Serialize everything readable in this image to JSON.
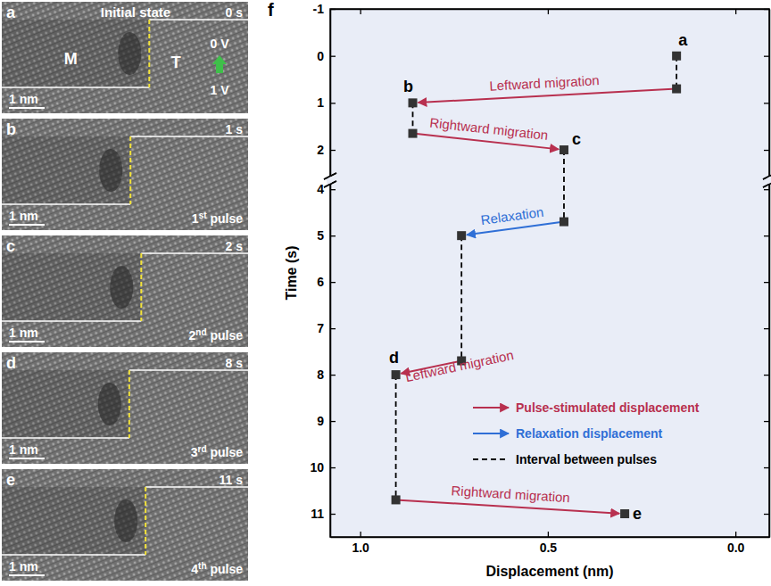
{
  "chart_data": {
    "type": "scatter",
    "panel": "f",
    "x_label": "Displacement (nm)",
    "y_label": "Time (s)",
    "xlim": [
      1.08,
      -0.09
    ],
    "xticks": [
      {
        "value": 1,
        "label": "1.0"
      },
      0.5,
      {
        "value": 0,
        "label": "0.0"
      }
    ],
    "ylim": [
      -1,
      11.5
    ],
    "y_break": [
      2.55,
      3.9
    ],
    "yticks": [
      -1,
      0,
      1,
      2,
      4,
      5,
      6,
      7,
      8,
      9,
      10,
      11
    ],
    "legend": "lower right",
    "points": {
      "x": [
        0.157,
        0.157,
        0.86,
        0.86,
        0.457,
        0.457,
        0.73,
        0.73,
        0.905,
        0.905,
        0.295
      ],
      "y": [
        0,
        0.7,
        1.0,
        1.65,
        2.0,
        4.7,
        5.0,
        7.7,
        8.0,
        10.7,
        11.0
      ],
      "labels": [
        "a",
        null,
        "b",
        null,
        "c",
        null,
        null,
        null,
        "d",
        null,
        "e"
      ],
      "color": "#333333",
      "marker": "square"
    },
    "series": [
      {
        "name": "Pulse-stimulated displacement",
        "color": "#b8304f",
        "marker": "arrow",
        "line_style": "solid",
        "segments": [
          {
            "x": [
              0.157,
              0.86
            ],
            "y": [
              0.7,
              1.0
            ],
            "label": "Leftward migration"
          },
          {
            "x": [
              0.86,
              0.457
            ],
            "y": [
              1.65,
              2.0
            ],
            "label": "Rightward migration"
          },
          {
            "x": [
              0.73,
              0.905
            ],
            "y": [
              7.7,
              8.0
            ],
            "label": "Leftward migration"
          },
          {
            "x": [
              0.905,
              0.295
            ],
            "y": [
              10.7,
              11.0
            ],
            "label": "Rightward migration"
          }
        ]
      },
      {
        "name": "Relaxation displacement",
        "color": "#2f6fd6",
        "marker": "arrow",
        "line_style": "solid",
        "segments": [
          {
            "x": [
              0.457,
              0.73
            ],
            "y": [
              4.7,
              5.0
            ],
            "label": "Relaxation"
          }
        ]
      },
      {
        "name": "Interval between pulses",
        "color": "#000000",
        "marker": "none",
        "line_style": "dashed",
        "segments": [
          {
            "x": [
              0.157,
              0.157
            ],
            "y": [
              0,
              0.7
            ]
          },
          {
            "x": [
              0.86,
              0.86
            ],
            "y": [
              1.0,
              1.65
            ]
          },
          {
            "x": [
              0.457,
              0.457
            ],
            "y": [
              2.0,
              4.7
            ]
          },
          {
            "x": [
              0.73,
              0.73
            ],
            "y": [
              5.0,
              7.7
            ]
          },
          {
            "x": [
              0.905,
              0.905
            ],
            "y": [
              8.0,
              10.7
            ]
          }
        ]
      }
    ]
  },
  "panels": [
    {
      "letter": "a",
      "title": "Initial state",
      "time": "0 s",
      "phase_labels": [
        "M",
        "T"
      ],
      "voltages": [
        "0 V",
        "1 V"
      ],
      "scale_bar": "1 nm"
    },
    {
      "letter": "b",
      "time": "1 s",
      "scale_bar": "1 nm",
      "pulse": "1st pulse"
    },
    {
      "letter": "c",
      "time": "2 s",
      "scale_bar": "1 nm",
      "pulse": "2nd pulse"
    },
    {
      "letter": "d",
      "time": "8 s",
      "scale_bar": "1 nm",
      "pulse": "3rd pulse"
    },
    {
      "letter": "e",
      "time": "11 s",
      "scale_bar": "1 nm",
      "pulse": "4th pulse"
    }
  ]
}
